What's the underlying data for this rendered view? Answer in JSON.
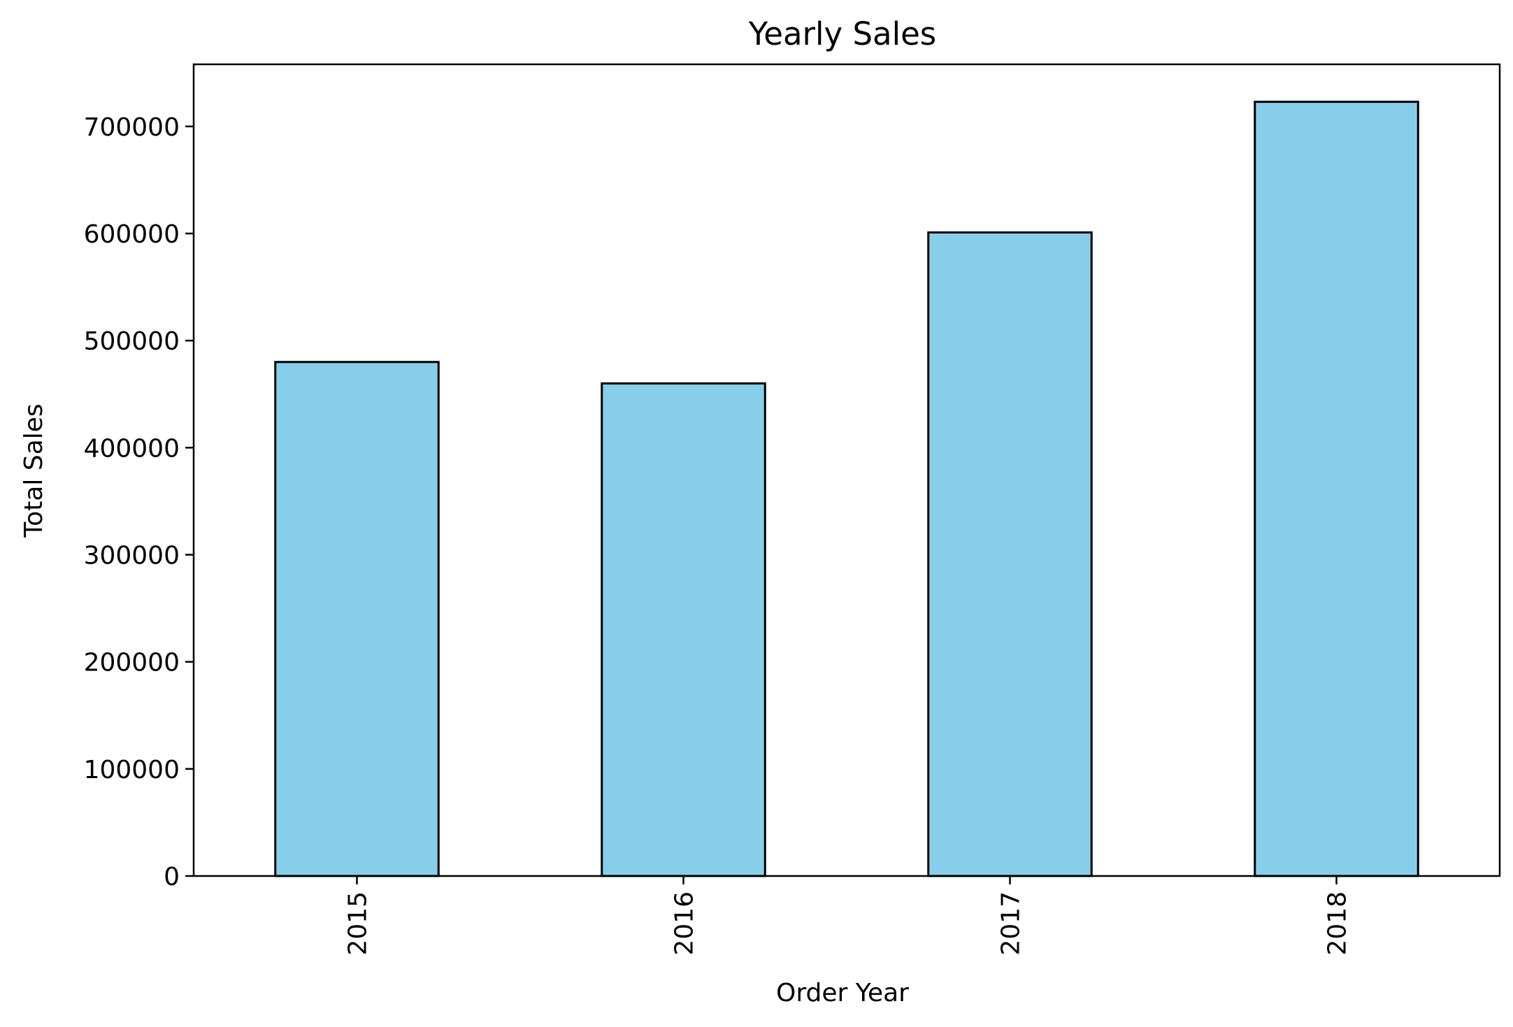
{
  "chart_data": {
    "type": "bar",
    "title": "Yearly Sales",
    "xlabel": "Order Year",
    "ylabel": "Total Sales",
    "categories": [
      "2015",
      "2016",
      "2017",
      "2018"
    ],
    "values": [
      480000,
      460000,
      601000,
      723000
    ],
    "ylim": [
      0,
      758000
    ],
    "yticks": [
      0,
      100000,
      200000,
      300000,
      400000,
      500000,
      600000,
      700000
    ],
    "ytick_labels": [
      "0",
      "100000",
      "200000",
      "300000",
      "400000",
      "500000",
      "600000",
      "700000"
    ],
    "xtick_rotation": "vertical",
    "grid": false,
    "legend": "none",
    "colors": {
      "bar_fill": "#87CEEB",
      "bar_edge": "#000000",
      "axes": "#000000",
      "background": "#ffffff"
    }
  }
}
